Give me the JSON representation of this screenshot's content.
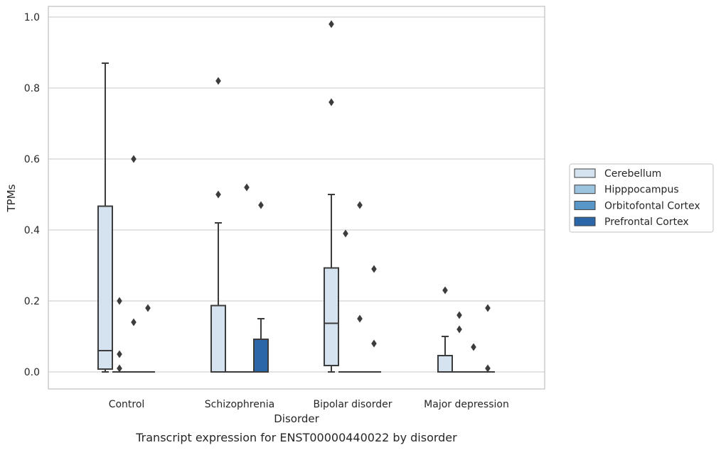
{
  "caption": "Transcript expression for ENST00000440022 by disorder",
  "colors": {
    "Cerebellum": "#d5e3f1",
    "Hipppocampus": "#9dc4de",
    "Orbitofontal Cortex": "#5796c6",
    "Prefrontal Cortex": "#2b67a8",
    "box_edge": "#3c3c3c",
    "grid": "#d3d3d3"
  },
  "chart_data": {
    "type": "box",
    "title": "",
    "xlabel": "Disorder",
    "ylabel": "TPMs",
    "ylim": [
      -0.045,
      1.03
    ],
    "yticks": [
      0.0,
      0.2,
      0.4,
      0.6,
      0.8,
      1.0
    ],
    "ytick_labels": [
      "0.0",
      "0.2",
      "0.4",
      "0.6",
      "0.8",
      "1.0"
    ],
    "grid": true,
    "legend_position": "right",
    "categories": [
      "Control",
      "Schizophrenia",
      "Bipolar disorder",
      "Major depression"
    ],
    "series": [
      {
        "name": "Cerebellum",
        "boxes": [
          {
            "q1": 0.008,
            "median": 0.06,
            "q3": 0.467,
            "whislo": 0.0,
            "whishi": 0.87,
            "fliers": []
          },
          {
            "q1": 0.0,
            "median": 0.0,
            "q3": 0.187,
            "whislo": 0.0,
            "whishi": 0.42,
            "fliers": [
              0.5,
              0.82
            ]
          },
          {
            "q1": 0.018,
            "median": 0.137,
            "q3": 0.293,
            "whislo": 0.0,
            "whishi": 0.5,
            "fliers": [
              0.76,
              0.98
            ]
          },
          {
            "q1": 0.0,
            "median": 0.0,
            "q3": 0.046,
            "whislo": 0.0,
            "whishi": 0.1,
            "fliers": [
              0.23
            ]
          }
        ]
      },
      {
        "name": "Hipppocampus",
        "boxes": [
          {
            "q1": 0.0,
            "median": 0.0,
            "q3": 0.0,
            "whislo": 0.0,
            "whishi": 0.0,
            "fliers": [
              0.01,
              0.05,
              0.2
            ]
          },
          {
            "q1": 0.0,
            "median": 0.0,
            "q3": 0.0,
            "whislo": 0.0,
            "whishi": 0.0,
            "fliers": []
          },
          {
            "q1": 0.0,
            "median": 0.0,
            "q3": 0.0,
            "whislo": 0.0,
            "whishi": 0.0,
            "fliers": [
              0.39
            ]
          },
          {
            "q1": 0.0,
            "median": 0.0,
            "q3": 0.0,
            "whislo": 0.0,
            "whishi": 0.0,
            "fliers": [
              0.12,
              0.16
            ]
          }
        ]
      },
      {
        "name": "Orbitofontal Cortex",
        "boxes": [
          {
            "q1": 0.0,
            "median": 0.0,
            "q3": 0.0,
            "whislo": 0.0,
            "whishi": 0.0,
            "fliers": [
              0.14,
              0.6
            ]
          },
          {
            "q1": 0.0,
            "median": 0.0,
            "q3": 0.0,
            "whislo": 0.0,
            "whishi": 0.0,
            "fliers": [
              0.52
            ]
          },
          {
            "q1": 0.0,
            "median": 0.0,
            "q3": 0.0,
            "whislo": 0.0,
            "whishi": 0.0,
            "fliers": [
              0.15,
              0.47
            ]
          },
          {
            "q1": 0.0,
            "median": 0.0,
            "q3": 0.0,
            "whislo": 0.0,
            "whishi": 0.0,
            "fliers": [
              0.07
            ]
          }
        ]
      },
      {
        "name": "Prefrontal Cortex",
        "boxes": [
          {
            "q1": 0.0,
            "median": 0.0,
            "q3": 0.0,
            "whislo": 0.0,
            "whishi": 0.0,
            "fliers": [
              0.18
            ]
          },
          {
            "q1": 0.0,
            "median": 0.0,
            "q3": 0.092,
            "whislo": 0.0,
            "whishi": 0.15,
            "fliers": [
              0.47
            ]
          },
          {
            "q1": 0.0,
            "median": 0.0,
            "q3": 0.0,
            "whislo": 0.0,
            "whishi": 0.0,
            "fliers": [
              0.08,
              0.29
            ]
          },
          {
            "q1": 0.0,
            "median": 0.0,
            "q3": 0.0,
            "whislo": 0.0,
            "whishi": 0.0,
            "fliers": [
              0.01,
              0.18
            ]
          }
        ]
      }
    ]
  }
}
